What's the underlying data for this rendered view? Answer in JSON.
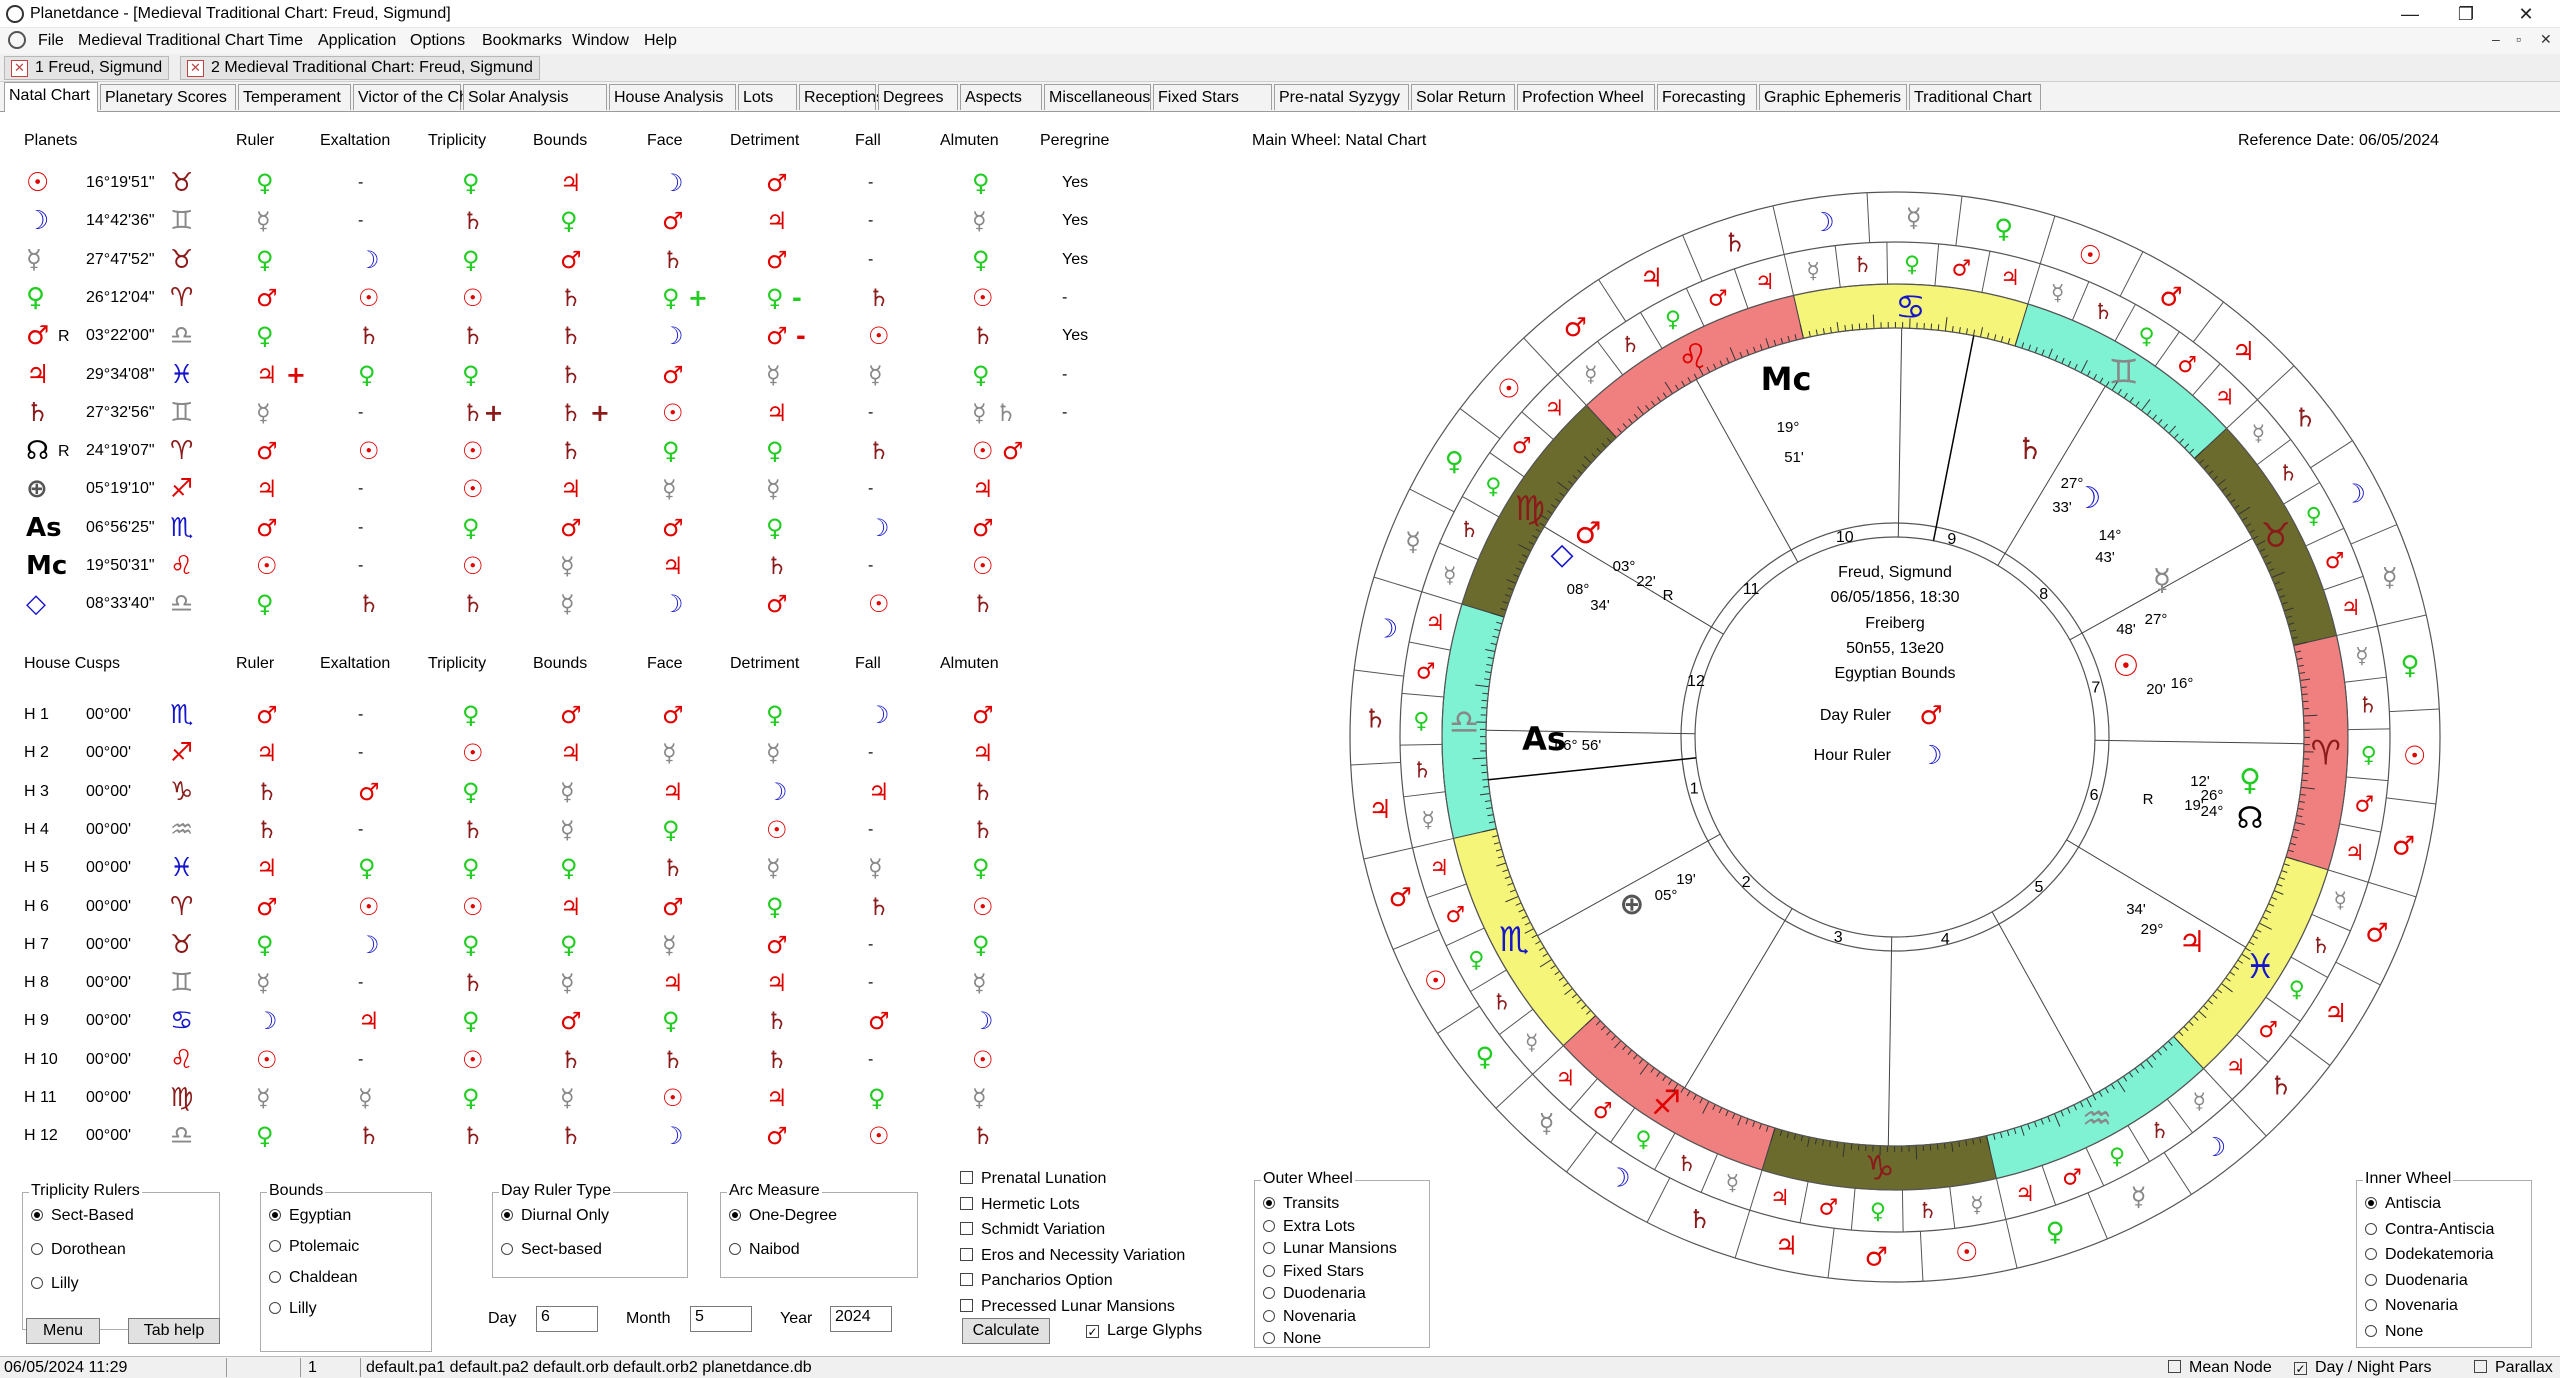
{
  "window": {
    "title": "Planetdance - [Medieval Traditional Chart: Freud, Sigmund]",
    "min": "—",
    "max": "❐",
    "close": "✕"
  },
  "menu": [
    "File",
    "Medieval Traditional Chart",
    "Time",
    "Application",
    "Options",
    "Bookmarks",
    "Window",
    "Help"
  ],
  "mdi": {
    "min": "–",
    "restore": "▫",
    "close": "✕"
  },
  "doc_tabs": [
    "1 Freud, Sigmund",
    "2 Medieval Traditional Chart:  Freud, Sigmund"
  ],
  "view_tabs": [
    "Natal Chart",
    "Planetary Scores",
    "Temperament",
    "Victor of the Chart",
    "Solar Analysis",
    "House Analysis",
    "Lots",
    "Receptions",
    "Degrees",
    "Aspects",
    "Miscellaneous",
    "Fixed Stars",
    "Pre-natal Syzygy",
    "Solar Return",
    "Profection Wheel",
    "Forecasting",
    "Graphic Ephemeris",
    "Traditional Chart"
  ],
  "planet_headers": [
    "Planets",
    "Ruler",
    "Exaltation",
    "Triplicity",
    "Bounds",
    "Face",
    "Detriment",
    "Fall",
    "Almuten",
    "Peregrine"
  ],
  "planets": [
    {
      "g": "☉",
      "c": "#e00000",
      "r": "",
      "pos": "16°19'51\"",
      "sign": "♉",
      "sc": "#8b1a1a",
      "cells": [
        [
          "♀",
          "#22cc22"
        ],
        [
          "-",
          ""
        ],
        [
          "♀",
          "#22cc22"
        ],
        [
          "♃",
          "#e00000"
        ],
        [
          "☽",
          "#1515cc"
        ],
        [
          "♂",
          "#e00000"
        ],
        [
          "-",
          ""
        ],
        [
          "♀",
          "#22cc22"
        ]
      ],
      "per": "Yes"
    },
    {
      "g": "☽",
      "c": "#1515cc",
      "r": "",
      "pos": "14°42'36\"",
      "sign": "♊",
      "sc": "#888888",
      "cells": [
        [
          "☿",
          "#888888"
        ],
        [
          "-",
          ""
        ],
        [
          "♄",
          "#8b1a1a"
        ],
        [
          "♀",
          "#22cc22"
        ],
        [
          "♂",
          "#e00000"
        ],
        [
          "♃",
          "#e00000"
        ],
        [
          "-",
          ""
        ],
        [
          "☿",
          "#888888"
        ]
      ],
      "per": "Yes"
    },
    {
      "g": "☿",
      "c": "#888888",
      "r": "",
      "pos": "27°47'52\"",
      "sign": "♉",
      "sc": "#8b1a1a",
      "cells": [
        [
          "♀",
          "#22cc22"
        ],
        [
          "☽",
          "#1515cc"
        ],
        [
          "♀",
          "#22cc22"
        ],
        [
          "♂",
          "#e00000"
        ],
        [
          "♄",
          "#8b1a1a"
        ],
        [
          "♂",
          "#e00000"
        ],
        [
          "-",
          ""
        ],
        [
          "♀",
          "#22cc22"
        ]
      ],
      "per": "Yes"
    },
    {
      "g": "♀",
      "c": "#22cc22",
      "r": "",
      "pos": "26°12'04\"",
      "sign": "♈",
      "sc": "#8b1a1a",
      "cells": [
        [
          "♂",
          "#e00000"
        ],
        [
          "☉",
          "#e00000"
        ],
        [
          "☉",
          "#e00000"
        ],
        [
          "♄",
          "#8b1a1a"
        ],
        [
          "♀ +",
          "#22cc22"
        ],
        [
          "♀ -",
          "#22cc22"
        ],
        [
          "♄",
          "#8b1a1a"
        ],
        [
          "☉",
          "#e00000"
        ]
      ],
      "per": "-"
    },
    {
      "g": "♂",
      "c": "#e00000",
      "r": "R",
      "pos": "03°22'00\"",
      "sign": "♎",
      "sc": "#888888",
      "cells": [
        [
          "♀",
          "#22cc22"
        ],
        [
          "♄",
          "#8b1a1a"
        ],
        [
          "♄",
          "#8b1a1a"
        ],
        [
          "♄",
          "#8b1a1a"
        ],
        [
          "☽",
          "#1515cc"
        ],
        [
          "♂ -",
          "#e00000"
        ],
        [
          "☉",
          "#e00000"
        ],
        [
          "♄",
          "#8b1a1a"
        ]
      ],
      "per": "Yes"
    },
    {
      "g": "♃",
      "c": "#e00000",
      "r": "",
      "pos": "29°34'08\"",
      "sign": "♓",
      "sc": "#1515cc",
      "cells": [
        [
          "♃ +",
          "#e00000"
        ],
        [
          "♀",
          "#22cc22"
        ],
        [
          "♀",
          "#22cc22"
        ],
        [
          "♄",
          "#8b1a1a"
        ],
        [
          "♂",
          "#e00000"
        ],
        [
          "☿",
          "#888888"
        ],
        [
          "☿",
          "#888888"
        ],
        [
          "♀",
          "#22cc22"
        ]
      ],
      "per": "-"
    },
    {
      "g": "♄",
      "c": "#8b1a1a",
      "r": "",
      "pos": "27°32'56\"",
      "sign": "♊",
      "sc": "#888888",
      "cells": [
        [
          "☿",
          "#888888"
        ],
        [
          "-",
          ""
        ],
        [
          "♄+",
          "#8b1a1a"
        ],
        [
          "♄ +",
          "#8b1a1a"
        ],
        [
          "☉",
          "#e00000"
        ],
        [
          "♃",
          "#e00000"
        ],
        [
          "-",
          ""
        ],
        [
          "☿ ♄",
          "#888888"
        ]
      ],
      "per": "-"
    },
    {
      "g": "☊",
      "c": "#000000",
      "r": "R",
      "pos": "24°19'07\"",
      "sign": "♈",
      "sc": "#8b1a1a",
      "cells": [
        [
          "♂",
          "#e00000"
        ],
        [
          "☉",
          "#e00000"
        ],
        [
          "☉",
          "#e00000"
        ],
        [
          "♄",
          "#8b1a1a"
        ],
        [
          "♀",
          "#22cc22"
        ],
        [
          "♀",
          "#22cc22"
        ],
        [
          "♄",
          "#8b1a1a"
        ],
        [
          "☉ ♂",
          "#e00000"
        ]
      ],
      "per": ""
    },
    {
      "g": "⊕",
      "c": "#555555",
      "r": "",
      "pos": "05°19'10\"",
      "sign": "♐",
      "sc": "#e00000",
      "cells": [
        [
          "♃",
          "#e00000"
        ],
        [
          "-",
          ""
        ],
        [
          "☉",
          "#e00000"
        ],
        [
          "♃",
          "#e00000"
        ],
        [
          "☿",
          "#888888"
        ],
        [
          "☿",
          "#888888"
        ],
        [
          "-",
          ""
        ],
        [
          "♃",
          "#e00000"
        ]
      ],
      "per": ""
    },
    {
      "g": "As",
      "c": "#000000",
      "r": "",
      "pos": "06°56'25\"",
      "sign": "♏",
      "sc": "#1515cc",
      "cells": [
        [
          "♂",
          "#e00000"
        ],
        [
          "-",
          ""
        ],
        [
          "♀",
          "#22cc22"
        ],
        [
          "♂",
          "#e00000"
        ],
        [
          "♂",
          "#e00000"
        ],
        [
          "♀",
          "#22cc22"
        ],
        [
          "☽",
          "#1515cc"
        ],
        [
          "♂",
          "#e00000"
        ]
      ],
      "per": ""
    },
    {
      "g": "Mc",
      "c": "#000000",
      "r": "",
      "pos": "19°50'31\"",
      "sign": "♌",
      "sc": "#e00000",
      "cells": [
        [
          "☉",
          "#e00000"
        ],
        [
          "-",
          ""
        ],
        [
          "☉",
          "#e00000"
        ],
        [
          "☿",
          "#888888"
        ],
        [
          "♃",
          "#e00000"
        ],
        [
          "♄",
          "#8b1a1a"
        ],
        [
          "-",
          ""
        ],
        [
          "☉",
          "#e00000"
        ]
      ],
      "per": ""
    },
    {
      "g": "◇",
      "c": "#1515cc",
      "r": "",
      "pos": "08°33'40\"",
      "sign": "♎",
      "sc": "#888888",
      "cells": [
        [
          "♀",
          "#22cc22"
        ],
        [
          "♄",
          "#8b1a1a"
        ],
        [
          "♄",
          "#8b1a1a"
        ],
        [
          "☿",
          "#888888"
        ],
        [
          "☽",
          "#1515cc"
        ],
        [
          "♂",
          "#e00000"
        ],
        [
          "☉",
          "#e00000"
        ],
        [
          "♄",
          "#8b1a1a"
        ]
      ],
      "per": ""
    }
  ],
  "house_headers": [
    "House Cusps",
    "Ruler",
    "Exaltation",
    "Triplicity",
    "Bounds",
    "Face",
    "Detriment",
    "Fall",
    "Almuten"
  ],
  "houses": [
    {
      "h": "H 1",
      "pos": "00°00'",
      "sign": "♏",
      "sc": "#1515cc",
      "cells": [
        [
          "♂",
          "#e00000"
        ],
        [
          "-",
          ""
        ],
        [
          "♀",
          "#22cc22"
        ],
        [
          "♂",
          "#e00000"
        ],
        [
          "♂",
          "#e00000"
        ],
        [
          "♀",
          "#22cc22"
        ],
        [
          "☽",
          "#1515cc"
        ],
        [
          "♂",
          "#e00000"
        ]
      ]
    },
    {
      "h": "H 2",
      "pos": "00°00'",
      "sign": "♐",
      "sc": "#e00000",
      "cells": [
        [
          "♃",
          "#e00000"
        ],
        [
          "-",
          ""
        ],
        [
          "☉",
          "#e00000"
        ],
        [
          "♃",
          "#e00000"
        ],
        [
          "☿",
          "#888888"
        ],
        [
          "☿",
          "#888888"
        ],
        [
          "-",
          ""
        ],
        [
          "♃",
          "#e00000"
        ]
      ]
    },
    {
      "h": "H 3",
      "pos": "00°00'",
      "sign": "♑",
      "sc": "#8b1a1a",
      "cells": [
        [
          "♄",
          "#8b1a1a"
        ],
        [
          "♂",
          "#e00000"
        ],
        [
          "♀",
          "#22cc22"
        ],
        [
          "☿",
          "#888888"
        ],
        [
          "♃",
          "#e00000"
        ],
        [
          "☽",
          "#1515cc"
        ],
        [
          "♃",
          "#e00000"
        ],
        [
          "♄",
          "#8b1a1a"
        ]
      ]
    },
    {
      "h": "H 4",
      "pos": "00°00'",
      "sign": "♒",
      "sc": "#888888",
      "cells": [
        [
          "♄",
          "#8b1a1a"
        ],
        [
          "-",
          ""
        ],
        [
          "♄",
          "#8b1a1a"
        ],
        [
          "☿",
          "#888888"
        ],
        [
          "♀",
          "#22cc22"
        ],
        [
          "☉",
          "#e00000"
        ],
        [
          "-",
          ""
        ],
        [
          "♄",
          "#8b1a1a"
        ]
      ]
    },
    {
      "h": "H 5",
      "pos": "00°00'",
      "sign": "♓",
      "sc": "#1515cc",
      "cells": [
        [
          "♃",
          "#e00000"
        ],
        [
          "♀",
          "#22cc22"
        ],
        [
          "♀",
          "#22cc22"
        ],
        [
          "♀",
          "#22cc22"
        ],
        [
          "♄",
          "#8b1a1a"
        ],
        [
          "☿",
          "#888888"
        ],
        [
          "☿",
          "#888888"
        ],
        [
          "♀",
          "#22cc22"
        ]
      ]
    },
    {
      "h": "H 6",
      "pos": "00°00'",
      "sign": "♈",
      "sc": "#8b1a1a",
      "cells": [
        [
          "♂",
          "#e00000"
        ],
        [
          "☉",
          "#e00000"
        ],
        [
          "☉",
          "#e00000"
        ],
        [
          "♃",
          "#e00000"
        ],
        [
          "♂",
          "#e00000"
        ],
        [
          "♀",
          "#22cc22"
        ],
        [
          "♄",
          "#8b1a1a"
        ],
        [
          "☉",
          "#e00000"
        ]
      ]
    },
    {
      "h": "H 7",
      "pos": "00°00'",
      "sign": "♉",
      "sc": "#8b1a1a",
      "cells": [
        [
          "♀",
          "#22cc22"
        ],
        [
          "☽",
          "#1515cc"
        ],
        [
          "♀",
          "#22cc22"
        ],
        [
          "♀",
          "#22cc22"
        ],
        [
          "☿",
          "#888888"
        ],
        [
          "♂",
          "#e00000"
        ],
        [
          "-",
          ""
        ],
        [
          "♀",
          "#22cc22"
        ]
      ]
    },
    {
      "h": "H 8",
      "pos": "00°00'",
      "sign": "♊",
      "sc": "#888888",
      "cells": [
        [
          "☿",
          "#888888"
        ],
        [
          "-",
          ""
        ],
        [
          "♄",
          "#8b1a1a"
        ],
        [
          "☿",
          "#888888"
        ],
        [
          "♃",
          "#e00000"
        ],
        [
          "♃",
          "#e00000"
        ],
        [
          "-",
          ""
        ],
        [
          "☿",
          "#888888"
        ]
      ]
    },
    {
      "h": "H 9",
      "pos": "00°00'",
      "sign": "♋",
      "sc": "#1515cc",
      "cells": [
        [
          "☽",
          "#1515cc"
        ],
        [
          "♃",
          "#e00000"
        ],
        [
          "♀",
          "#22cc22"
        ],
        [
          "♂",
          "#e00000"
        ],
        [
          "♀",
          "#22cc22"
        ],
        [
          "♄",
          "#8b1a1a"
        ],
        [
          "♂",
          "#e00000"
        ],
        [
          "☽",
          "#1515cc"
        ]
      ]
    },
    {
      "h": "H 10",
      "pos": "00°00'",
      "sign": "♌",
      "sc": "#e00000",
      "cells": [
        [
          "☉",
          "#e00000"
        ],
        [
          "-",
          ""
        ],
        [
          "☉",
          "#e00000"
        ],
        [
          "♄",
          "#8b1a1a"
        ],
        [
          "♄",
          "#8b1a1a"
        ],
        [
          "♄",
          "#8b1a1a"
        ],
        [
          "-",
          ""
        ],
        [
          "☉",
          "#e00000"
        ]
      ]
    },
    {
      "h": "H 11",
      "pos": "00°00'",
      "sign": "♍",
      "sc": "#8b1a1a",
      "cells": [
        [
          "☿",
          "#888888"
        ],
        [
          "☿",
          "#888888"
        ],
        [
          "♀",
          "#22cc22"
        ],
        [
          "☿",
          "#888888"
        ],
        [
          "☉",
          "#e00000"
        ],
        [
          "♃",
          "#e00000"
        ],
        [
          "♀",
          "#22cc22"
        ],
        [
          "☿",
          "#888888"
        ]
      ]
    },
    {
      "h": "H 12",
      "pos": "00°00'",
      "sign": "♎",
      "sc": "#888888",
      "cells": [
        [
          "♀",
          "#22cc22"
        ],
        [
          "♄",
          "#8b1a1a"
        ],
        [
          "♄",
          "#8b1a1a"
        ],
        [
          "♄",
          "#8b1a1a"
        ],
        [
          "☽",
          "#1515cc"
        ],
        [
          "♂",
          "#e00000"
        ],
        [
          "☉",
          "#e00000"
        ],
        [
          "♄",
          "#8b1a1a"
        ]
      ]
    }
  ],
  "triplicity": {
    "title": "Triplicity Rulers",
    "opts": [
      "Sect-Based",
      "Dorothean",
      "Lilly"
    ],
    "sel": 0
  },
  "bounds": {
    "title": "Bounds",
    "opts": [
      "Egyptian",
      "Ptolemaic",
      "Chaldean",
      "Lilly"
    ],
    "sel": 0
  },
  "dayruler": {
    "title": "Day Ruler Type",
    "opts": [
      "Diurnal Only",
      "Sect-based"
    ],
    "sel": 0
  },
  "arc": {
    "title": "Arc Measure",
    "opts": [
      "One-Degree",
      "Naibod"
    ],
    "sel": 0
  },
  "checks": [
    {
      "label": "Prenatal Lunation",
      "on": false
    },
    {
      "label": "Hermetic Lots",
      "on": false
    },
    {
      "label": "Schmidt Variation",
      "on": false
    },
    {
      "label": "Eros and Necessity Variation",
      "on": false
    },
    {
      "label": "Pancharios Option",
      "on": false
    },
    {
      "label": "Precessed Lunar Mansions",
      "on": false
    }
  ],
  "buttons": {
    "menu": "Menu",
    "tabhelp": "Tab help",
    "calculate": "Calculate"
  },
  "large_glyphs": {
    "label": "Large Glyphs",
    "on": true
  },
  "date_fields": {
    "day_label": "Day",
    "day": "6",
    "month_label": "Month",
    "month": "5",
    "year_label": "Year",
    "year": "2024"
  },
  "outer_wheel": {
    "title": "Outer Wheel",
    "opts": [
      "Transits",
      "Extra Lots",
      "Lunar Mansions",
      "Fixed Stars",
      "Duodenaria",
      "Novenaria",
      "None"
    ],
    "sel": 0
  },
  "inner_wheel": {
    "title": "Inner Wheel",
    "opts": [
      "Antiscia",
      "Contra-Antiscia",
      "Dodekatemoria",
      "Duodenaria",
      "Novenaria",
      "None"
    ],
    "sel": 0
  },
  "main_wheel_label": "Main Wheel: Natal Chart",
  "reference_date": "Reference Date: 06/05/2024",
  "chart_center": {
    "name": "Freud, Sigmund",
    "datetime": "06/05/1856, 18:30",
    "place": "Freiberg",
    "coords": "50n55, 13e20",
    "bounds": "Egyptian Bounds",
    "day_ruler_label": "Day Ruler",
    "day_ruler": "♂",
    "day_ruler_color": "#e00000",
    "hour_ruler_label": "Hour Ruler",
    "hour_ruler": "☽",
    "hour_ruler_color": "#1515cc"
  },
  "wheel_texts": {
    "mc_deg": "19°",
    "mc_min": "51'",
    "as_deg": "06° 56'",
    "mars_deg": "03°",
    "mars_min": "22'",
    "mars_r": "R",
    "diamond_deg": "08°",
    "diamond_min": "34'",
    "sat_deg": "27°",
    "sat_min": "33'",
    "moon_deg": "14°",
    "moon_min": "43'",
    "merc_deg": "27°",
    "merc_min": "48'",
    "sun_deg": "16°",
    "sun_min": "20'",
    "venus_deg": "26°",
    "venus_min": "12'",
    "node_deg": "24°",
    "node_min": "19'",
    "node_r": "R",
    "jup_deg": "29°",
    "jup_min": "34'",
    "pof_deg": "05°",
    "pof_min": "19'"
  },
  "status": {
    "datetime": "06/05/2024 11:29",
    "num": "1",
    "files": "default.pa1 default.pa2 default.orb default.orb2 planetdance.db",
    "mean_node": "Mean Node",
    "day_night": "Day / Night Pars",
    "parallax": "Parallax"
  }
}
